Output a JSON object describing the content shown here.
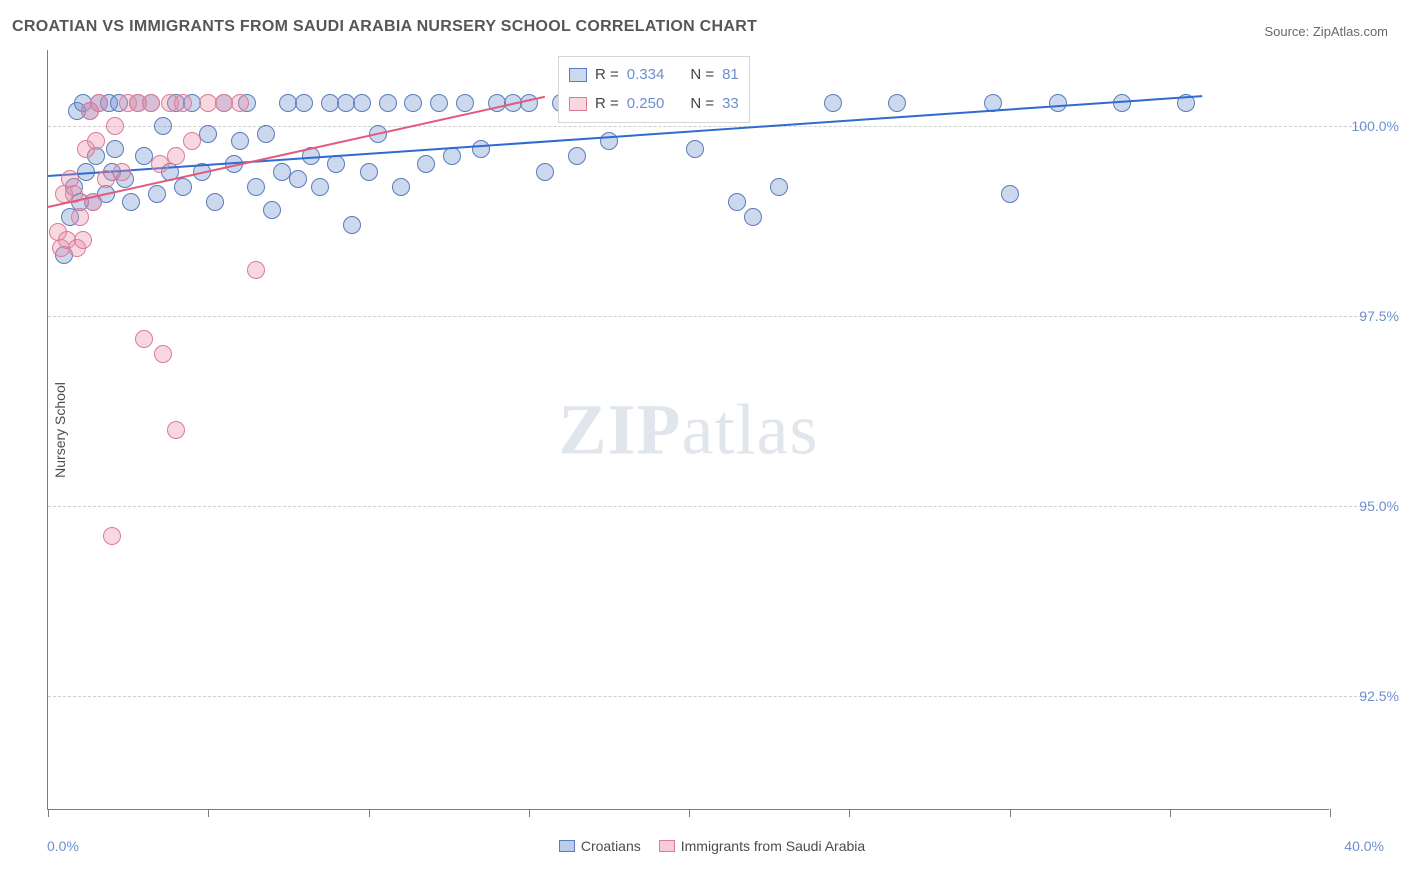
{
  "title": "CROATIAN VS IMMIGRANTS FROM SAUDI ARABIA NURSERY SCHOOL CORRELATION CHART",
  "source": "Source: ZipAtlas.com",
  "ylabel": "Nursery School",
  "watermark": {
    "bold": "ZIP",
    "rest": "atlas"
  },
  "chart": {
    "type": "scatter",
    "xlim": [
      0,
      40
    ],
    "ylim": [
      91,
      101
    ],
    "xlim_labels": {
      "min": "0.0%",
      "max": "40.0%"
    },
    "ytick_step": 2.5,
    "ytick_labels": [
      "92.5%",
      "95.0%",
      "97.5%",
      "100.0%"
    ],
    "xtick_positions": [
      0,
      5,
      10,
      15,
      20,
      25,
      30,
      35,
      40
    ],
    "grid_color": "#cfcfcf",
    "axis_color": "#7a7d82",
    "background_color": "#ffffff",
    "marker_radius": 9,
    "marker_opacity": 0.5,
    "series": [
      {
        "name": "Croatians",
        "color": "#6d8fce",
        "fill": "rgba(109,143,206,0.35)",
        "border": "#5b7dbb",
        "R": "0.334",
        "N": "81",
        "trend": {
          "x1": 0,
          "y1": 99.35,
          "x2": 36,
          "y2": 100.4,
          "color": "#2f6bd0",
          "width": 2
        },
        "points": [
          [
            0.5,
            98.3
          ],
          [
            0.7,
            98.8
          ],
          [
            0.8,
            99.2
          ],
          [
            0.9,
            100.2
          ],
          [
            1.0,
            99.0
          ],
          [
            1.1,
            100.3
          ],
          [
            1.2,
            99.4
          ],
          [
            1.3,
            100.2
          ],
          [
            1.4,
            99.0
          ],
          [
            1.5,
            99.6
          ],
          [
            1.6,
            100.3
          ],
          [
            1.8,
            99.1
          ],
          [
            1.9,
            100.3
          ],
          [
            2.0,
            99.4
          ],
          [
            2.1,
            99.7
          ],
          [
            2.2,
            100.3
          ],
          [
            2.4,
            99.3
          ],
          [
            2.6,
            99.0
          ],
          [
            2.8,
            100.3
          ],
          [
            3.0,
            99.6
          ],
          [
            3.2,
            100.3
          ],
          [
            3.4,
            99.1
          ],
          [
            3.6,
            100.0
          ],
          [
            3.8,
            99.4
          ],
          [
            4.0,
            100.3
          ],
          [
            4.2,
            99.2
          ],
          [
            4.5,
            100.3
          ],
          [
            4.8,
            99.4
          ],
          [
            5.0,
            99.9
          ],
          [
            5.2,
            99.0
          ],
          [
            5.5,
            100.3
          ],
          [
            5.8,
            99.5
          ],
          [
            6.0,
            99.8
          ],
          [
            6.2,
            100.3
          ],
          [
            6.5,
            99.2
          ],
          [
            6.8,
            99.9
          ],
          [
            7.0,
            98.9
          ],
          [
            7.3,
            99.4
          ],
          [
            7.5,
            100.3
          ],
          [
            7.8,
            99.3
          ],
          [
            8.0,
            100.3
          ],
          [
            8.2,
            99.6
          ],
          [
            8.5,
            99.2
          ],
          [
            8.8,
            100.3
          ],
          [
            9.0,
            99.5
          ],
          [
            9.3,
            100.3
          ],
          [
            9.5,
            98.7
          ],
          [
            9.8,
            100.3
          ],
          [
            10.0,
            99.4
          ],
          [
            10.3,
            99.9
          ],
          [
            10.6,
            100.3
          ],
          [
            11.0,
            99.2
          ],
          [
            11.4,
            100.3
          ],
          [
            11.8,
            99.5
          ],
          [
            12.2,
            100.3
          ],
          [
            12.6,
            99.6
          ],
          [
            13.0,
            100.3
          ],
          [
            13.5,
            99.7
          ],
          [
            14.0,
            100.3
          ],
          [
            14.5,
            100.3
          ],
          [
            15.0,
            100.3
          ],
          [
            15.5,
            99.4
          ],
          [
            16.0,
            100.3
          ],
          [
            16.5,
            99.6
          ],
          [
            17.0,
            100.3
          ],
          [
            17.5,
            99.8
          ],
          [
            18.0,
            100.3
          ],
          [
            18.7,
            100.3
          ],
          [
            19.5,
            100.3
          ],
          [
            20.2,
            99.7
          ],
          [
            21.0,
            100.3
          ],
          [
            21.5,
            99.0
          ],
          [
            22.0,
            98.8
          ],
          [
            22.8,
            99.2
          ],
          [
            24.5,
            100.3
          ],
          [
            26.5,
            100.3
          ],
          [
            29.5,
            100.3
          ],
          [
            30.0,
            99.1
          ],
          [
            31.5,
            100.3
          ],
          [
            33.5,
            100.3
          ],
          [
            35.5,
            100.3
          ]
        ]
      },
      {
        "name": "Immigrants from Saudi Arabia",
        "color": "#e98fa8",
        "fill": "rgba(233,143,168,0.35)",
        "border": "#dd7b97",
        "R": "0.250",
        "N": "33",
        "trend": {
          "x1": 0,
          "y1": 98.95,
          "x2": 15.5,
          "y2": 100.4,
          "color": "#e15b7f",
          "width": 2
        },
        "points": [
          [
            0.3,
            98.6
          ],
          [
            0.4,
            98.4
          ],
          [
            0.5,
            99.1
          ],
          [
            0.6,
            98.5
          ],
          [
            0.7,
            99.3
          ],
          [
            0.8,
            99.1
          ],
          [
            0.9,
            98.4
          ],
          [
            1.0,
            98.8
          ],
          [
            1.1,
            98.5
          ],
          [
            1.2,
            99.7
          ],
          [
            1.3,
            100.2
          ],
          [
            1.4,
            99.0
          ],
          [
            1.5,
            99.8
          ],
          [
            1.6,
            100.3
          ],
          [
            1.8,
            99.3
          ],
          [
            2.0,
            94.6
          ],
          [
            2.1,
            100.0
          ],
          [
            2.3,
            99.4
          ],
          [
            2.5,
            100.3
          ],
          [
            2.8,
            100.3
          ],
          [
            3.0,
            97.2
          ],
          [
            3.2,
            100.3
          ],
          [
            3.5,
            99.5
          ],
          [
            3.6,
            97.0
          ],
          [
            3.8,
            100.3
          ],
          [
            4.0,
            99.6
          ],
          [
            4.0,
            96.0
          ],
          [
            4.2,
            100.3
          ],
          [
            4.5,
            99.8
          ],
          [
            5.0,
            100.3
          ],
          [
            5.5,
            100.3
          ],
          [
            6.0,
            100.3
          ],
          [
            6.5,
            98.1
          ]
        ]
      }
    ]
  },
  "legend_stats": {
    "rows": [
      {
        "swatch_fill": "rgba(109,143,206,0.35)",
        "swatch_border": "#5b7dbb",
        "r_label": "R =",
        "r_val": "0.334",
        "n_label": "N =",
        "n_val": "81"
      },
      {
        "swatch_fill": "rgba(233,143,168,0.35)",
        "swatch_border": "#dd7b97",
        "r_label": "R =",
        "r_val": "0.250",
        "n_label": "N =",
        "n_val": "33"
      }
    ]
  },
  "bottom_legend": {
    "items": [
      {
        "swatch_fill": "rgba(109,143,206,0.45)",
        "swatch_border": "#5b7dbb",
        "label": "Croatians"
      },
      {
        "swatch_fill": "rgba(233,143,168,0.45)",
        "swatch_border": "#dd7b97",
        "label": "Immigrants from Saudi Arabia"
      }
    ]
  }
}
